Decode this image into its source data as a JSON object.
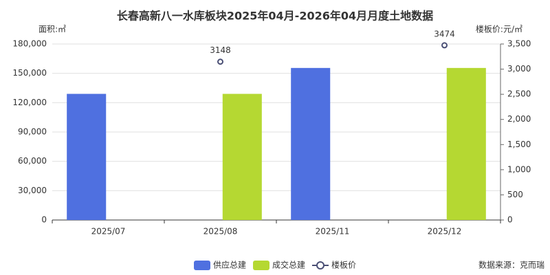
{
  "chart_data": {
    "type": "bar",
    "title": "长春高新八一水库板块2025年04月-2026年04月月度土地数据",
    "y_label": "面积:㎡",
    "y2_label": "楼板价:元/㎡",
    "source": "数据来源：克而瑞",
    "categories": [
      "2025/07",
      "2025/08",
      "2025/11",
      "2025/12"
    ],
    "series": [
      {
        "name": "供应总建",
        "color": "#4f70e0",
        "type": "bar",
        "values": [
          129000,
          null,
          155500,
          null
        ]
      },
      {
        "name": "成交总建",
        "color": "#b5d832",
        "type": "bar",
        "values": [
          null,
          129000,
          null,
          155500
        ]
      },
      {
        "name": "楼板价",
        "color": "#4a4f75",
        "type": "line",
        "axis": "y2",
        "data_labels": true,
        "values": [
          null,
          3148,
          null,
          3474
        ]
      }
    ],
    "ylim": [
      0,
      180000
    ],
    "yticks": [
      0,
      {
        "value": 30000,
        "label": "30,000"
      },
      {
        "value": 60000,
        "label": "60,000"
      },
      {
        "value": 90000,
        "label": "90,000"
      },
      {
        "value": 120000,
        "label": "120,000"
      },
      {
        "value": 150000,
        "label": "150,000"
      },
      {
        "value": 180000,
        "label": "180,000"
      }
    ],
    "y2lim": [
      0,
      3500
    ],
    "y2ticks": [
      0,
      500,
      {
        "value": 1000,
        "label": "1,000"
      },
      {
        "value": 1500,
        "label": "1,500"
      },
      {
        "value": 2000,
        "label": "2,000"
      },
      {
        "value": 2500,
        "label": "2,500"
      },
      {
        "value": 3000,
        "label": "3,000"
      },
      {
        "value": 3500,
        "label": "3,500"
      }
    ],
    "grid": true,
    "legend": "bottom"
  }
}
